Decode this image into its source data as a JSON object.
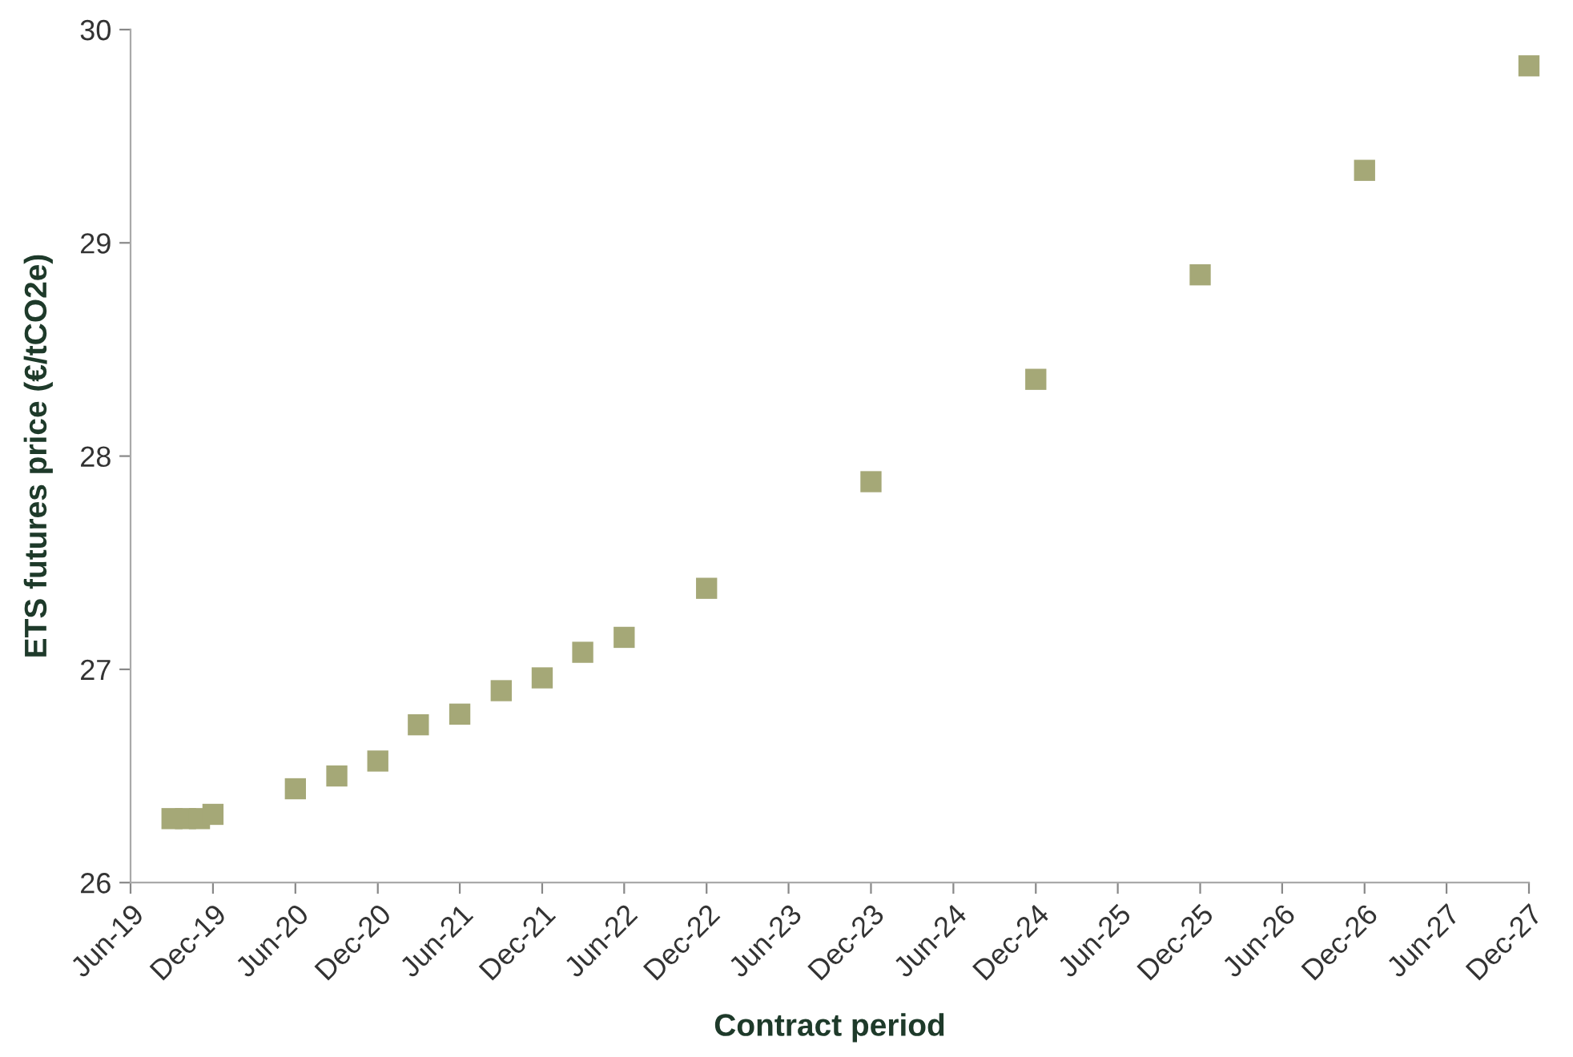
{
  "chart_data": {
    "type": "scatter",
    "xlabel": "Contract period",
    "ylabel": "ETS futures price (€/tCO2e)",
    "x": [
      "2019-09",
      "2019-10",
      "2019-11",
      "2019-12",
      "2020-06",
      "2020-09",
      "2020-12",
      "2021-03",
      "2021-06",
      "2021-09",
      "2021-12",
      "2022-03",
      "2022-06",
      "2022-12",
      "2023-12",
      "2024-12",
      "2025-12",
      "2026-12",
      "2027-12"
    ],
    "series": [
      {
        "color": "#a5a877",
        "values": [
          26.3,
          26.3,
          26.3,
          26.32,
          26.44,
          26.5,
          26.57,
          26.74,
          26.79,
          26.9,
          26.96,
          27.08,
          27.15,
          27.38,
          27.88,
          28.36,
          28.85,
          29.34,
          29.83
        ]
      }
    ],
    "marker": "square",
    "xlim": [
      "2019-06",
      "2027-12"
    ],
    "xticks": [
      {
        "value": "2019-06",
        "label": "Jun-19"
      },
      {
        "value": "2019-12",
        "label": "Dec-19"
      },
      {
        "value": "2020-06",
        "label": "Jun-20"
      },
      {
        "value": "2020-12",
        "label": "Dec-20"
      },
      {
        "value": "2021-06",
        "label": "Jun-21"
      },
      {
        "value": "2021-12",
        "label": "Dec-21"
      },
      {
        "value": "2022-06",
        "label": "Jun-22"
      },
      {
        "value": "2022-12",
        "label": "Dec-22"
      },
      {
        "value": "2023-06",
        "label": "Jun-23"
      },
      {
        "value": "2023-12",
        "label": "Dec-23"
      },
      {
        "value": "2024-06",
        "label": "Jun-24"
      },
      {
        "value": "2024-12",
        "label": "Dec-24"
      },
      {
        "value": "2025-06",
        "label": "Jun-25"
      },
      {
        "value": "2025-12",
        "label": "Dec-25"
      },
      {
        "value": "2026-06",
        "label": "Jun-26"
      },
      {
        "value": "2026-12",
        "label": "Dec-26"
      },
      {
        "value": "2027-06",
        "label": "Jun-27"
      },
      {
        "value": "2027-12",
        "label": "Dec-27"
      }
    ],
    "ylim": [
      26,
      30
    ],
    "yticks": [
      26,
      27,
      28,
      29,
      30
    ],
    "grid": false,
    "legend": false
  }
}
